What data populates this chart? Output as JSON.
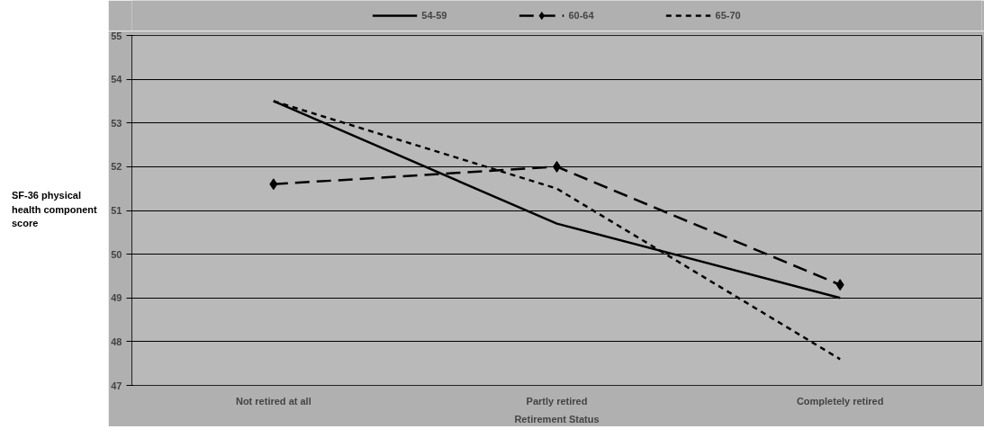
{
  "chart_data": {
    "type": "line",
    "xlabel": "Retirement Status",
    "ylabel": "SF-36 physical health component score",
    "categories": [
      "Not retired at all",
      "Partly retired",
      "Completely retired"
    ],
    "series": [
      {
        "name": "54-59",
        "color": "#000000",
        "values": [
          53.5,
          50.7,
          49.0
        ],
        "line_style": "solid",
        "marker": "none"
      },
      {
        "name": "60-64",
        "color": "#000000",
        "values": [
          51.6,
          52.0,
          49.3
        ],
        "line_style": "dashed",
        "marker": "diamond"
      },
      {
        "name": "65-70",
        "color": "#000000",
        "values": [
          53.5,
          51.5,
          47.6
        ],
        "line_style": "dotted",
        "marker": "none"
      }
    ],
    "ylim": [
      47,
      55
    ],
    "yticks": [
      47,
      48,
      49,
      50,
      51,
      52,
      53,
      54,
      55
    ],
    "grid": "y",
    "legend": "top"
  }
}
